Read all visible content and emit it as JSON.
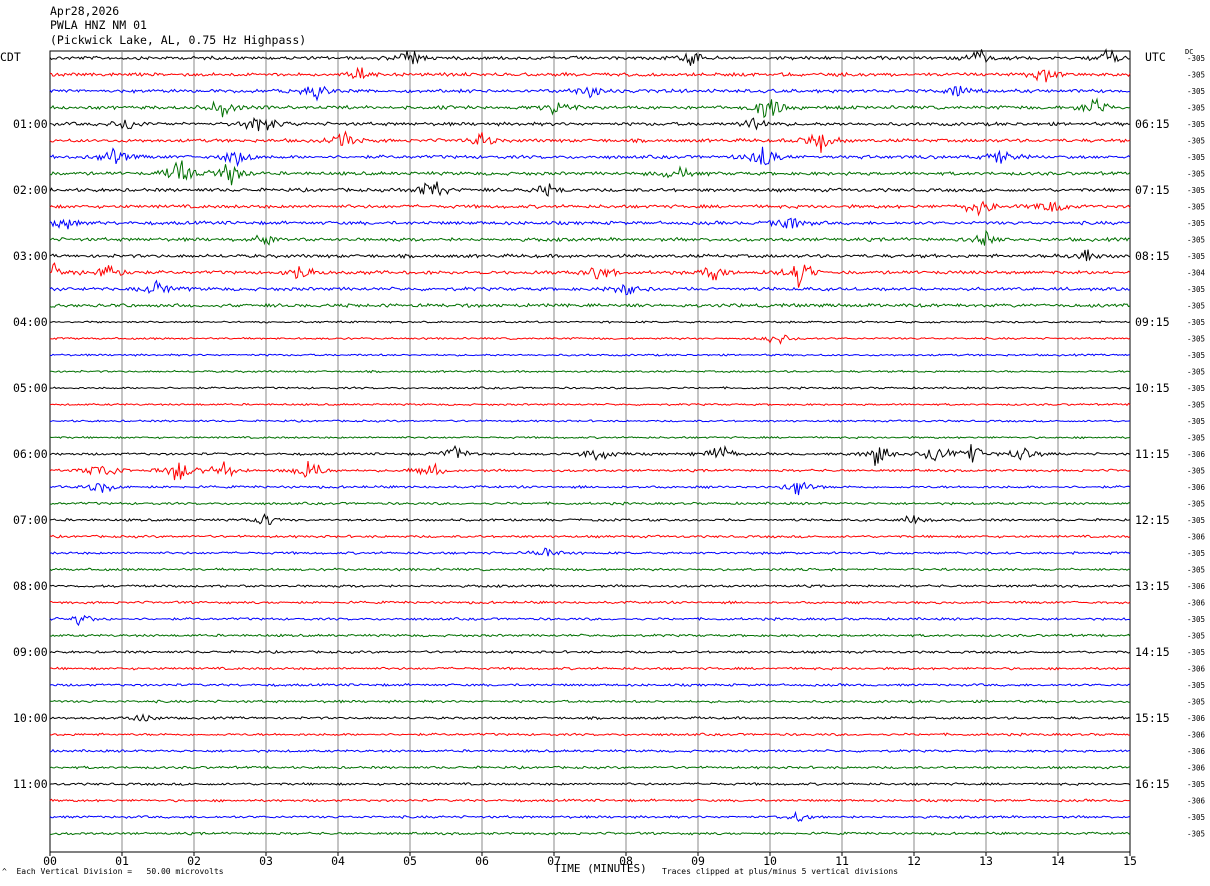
{
  "header": {
    "date": "Apr28,2026",
    "station": "PWLA HNZ NM 01",
    "description": "(Pickwick Lake, AL, 0.75 Hz Highpass)"
  },
  "left_tz": "CDT",
  "right_tz": "UTC",
  "dc_label": "DC",
  "footer": {
    "scale": "Each Vertical Division =   50.00 microvolts",
    "clip": "Traces clipped at plus/minus 5 vertical divisions",
    "corner_mark": "^"
  },
  "chart_data": {
    "type": "line",
    "title": "",
    "xlabel": "TIME (MINUTES)",
    "ylabel": "",
    "x_ticks": [
      "00",
      "01",
      "02",
      "03",
      "04",
      "05",
      "06",
      "07",
      "08",
      "09",
      "10",
      "11",
      "12",
      "13",
      "14",
      "15"
    ],
    "xlim": [
      0,
      15
    ],
    "grid": true,
    "trace_colors": [
      "#000000",
      "#ff0000",
      "#0000ff",
      "#007000"
    ],
    "left_labels": [
      {
        "row": 4,
        "text": "01:00"
      },
      {
        "row": 8,
        "text": "02:00"
      },
      {
        "row": 12,
        "text": "03:00"
      },
      {
        "row": 16,
        "text": "04:00"
      },
      {
        "row": 20,
        "text": "05:00"
      },
      {
        "row": 24,
        "text": "06:00"
      },
      {
        "row": 28,
        "text": "07:00"
      },
      {
        "row": 32,
        "text": "08:00"
      },
      {
        "row": 36,
        "text": "09:00"
      },
      {
        "row": 40,
        "text": "10:00"
      },
      {
        "row": 44,
        "text": "11:00"
      }
    ],
    "right_labels": [
      {
        "row": 4,
        "text": "06:15"
      },
      {
        "row": 8,
        "text": "07:15"
      },
      {
        "row": 12,
        "text": "08:15"
      },
      {
        "row": 16,
        "text": "09:15"
      },
      {
        "row": 20,
        "text": "10:15"
      },
      {
        "row": 24,
        "text": "11:15"
      },
      {
        "row": 28,
        "text": "12:15"
      },
      {
        "row": 32,
        "text": "13:15"
      },
      {
        "row": 36,
        "text": "14:15"
      },
      {
        "row": 40,
        "text": "15:15"
      },
      {
        "row": 44,
        "text": "16:15"
      }
    ],
    "dc_offsets": [
      "-305",
      "-305",
      "-305",
      "-305",
      "-305",
      "-305",
      "-305",
      "-305",
      "-305",
      "-305",
      "-305",
      "-305",
      "-305",
      "-304",
      "-305",
      "-305",
      "-305",
      "-305",
      "-305",
      "-305",
      "-305",
      "-305",
      "-305",
      "-305",
      "-306",
      "-305",
      "-306",
      "-305",
      "-305",
      "-306",
      "-305",
      "-305",
      "-306",
      "-306",
      "-305",
      "-305",
      "-305",
      "-306",
      "-305",
      "-305",
      "-306",
      "-306",
      "-306",
      "-306",
      "-305",
      "-306",
      "-305",
      "-305"
    ],
    "bursts": [
      {
        "row": 0,
        "min": 5.0,
        "amp": 8
      },
      {
        "row": 0,
        "min": 8.9,
        "amp": 6
      },
      {
        "row": 0,
        "min": 12.9,
        "amp": 9
      },
      {
        "row": 0,
        "min": 14.7,
        "amp": 7
      },
      {
        "row": 1,
        "min": 4.3,
        "amp": 6
      },
      {
        "row": 1,
        "min": 13.8,
        "amp": 9
      },
      {
        "row": 2,
        "min": 3.7,
        "amp": 9
      },
      {
        "row": 2,
        "min": 7.5,
        "amp": 6
      },
      {
        "row": 2,
        "min": 12.6,
        "amp": 6
      },
      {
        "row": 3,
        "min": 2.4,
        "amp": 10
      },
      {
        "row": 3,
        "min": 7.0,
        "amp": 8
      },
      {
        "row": 3,
        "min": 10.0,
        "amp": 14
      },
      {
        "row": 3,
        "min": 14.5,
        "amp": 9
      },
      {
        "row": 4,
        "min": 2.9,
        "amp": 14
      },
      {
        "row": 4,
        "min": 1.1,
        "amp": 6
      },
      {
        "row": 4,
        "min": 9.8,
        "amp": 8
      },
      {
        "row": 5,
        "min": 4.1,
        "amp": 9
      },
      {
        "row": 5,
        "min": 6.0,
        "amp": 7
      },
      {
        "row": 5,
        "min": 10.7,
        "amp": 12
      },
      {
        "row": 6,
        "min": 0.9,
        "amp": 10
      },
      {
        "row": 6,
        "min": 2.6,
        "amp": 9
      },
      {
        "row": 6,
        "min": 9.9,
        "amp": 12
      },
      {
        "row": 6,
        "min": 13.2,
        "amp": 7
      },
      {
        "row": 7,
        "min": 1.8,
        "amp": 14
      },
      {
        "row": 7,
        "min": 2.5,
        "amp": 12
      },
      {
        "row": 7,
        "min": 8.7,
        "amp": 7
      },
      {
        "row": 8,
        "min": 5.3,
        "amp": 12
      },
      {
        "row": 8,
        "min": 6.9,
        "amp": 6
      },
      {
        "row": 9,
        "min": 12.9,
        "amp": 10
      },
      {
        "row": 9,
        "min": 13.9,
        "amp": 8
      },
      {
        "row": 10,
        "min": 10.3,
        "amp": 9
      },
      {
        "row": 10,
        "min": 0.2,
        "amp": 6
      },
      {
        "row": 11,
        "min": 13.0,
        "amp": 6
      },
      {
        "row": 11,
        "min": 3.0,
        "amp": 5
      },
      {
        "row": 12,
        "min": 14.4,
        "amp": 7
      },
      {
        "row": 13,
        "min": 0.1,
        "amp": 9
      },
      {
        "row": 13,
        "min": 0.8,
        "amp": 11
      },
      {
        "row": 13,
        "min": 3.5,
        "amp": 9
      },
      {
        "row": 13,
        "min": 7.6,
        "amp": 12
      },
      {
        "row": 13,
        "min": 10.4,
        "amp": 16
      },
      {
        "row": 13,
        "min": 9.2,
        "amp": 7
      },
      {
        "row": 14,
        "min": 1.5,
        "amp": 8
      },
      {
        "row": 14,
        "min": 8.0,
        "amp": 6
      },
      {
        "row": 17,
        "min": 10.1,
        "amp": 6
      },
      {
        "row": 24,
        "min": 5.6,
        "amp": 9
      },
      {
        "row": 24,
        "min": 7.6,
        "amp": 8
      },
      {
        "row": 24,
        "min": 9.3,
        "amp": 9
      },
      {
        "row": 24,
        "min": 11.5,
        "amp": 12
      },
      {
        "row": 24,
        "min": 12.3,
        "amp": 9
      },
      {
        "row": 24,
        "min": 12.8,
        "amp": 12
      },
      {
        "row": 24,
        "min": 13.5,
        "amp": 8
      },
      {
        "row": 25,
        "min": 0.7,
        "amp": 14
      },
      {
        "row": 25,
        "min": 1.8,
        "amp": 12
      },
      {
        "row": 25,
        "min": 2.4,
        "amp": 10
      },
      {
        "row": 25,
        "min": 3.6,
        "amp": 12
      },
      {
        "row": 25,
        "min": 5.3,
        "amp": 8
      },
      {
        "row": 26,
        "min": 0.7,
        "amp": 7
      },
      {
        "row": 26,
        "min": 10.4,
        "amp": 9
      },
      {
        "row": 28,
        "min": 3.0,
        "amp": 6
      },
      {
        "row": 28,
        "min": 12.0,
        "amp": 5
      },
      {
        "row": 30,
        "min": 6.9,
        "amp": 6
      },
      {
        "row": 34,
        "min": 0.4,
        "amp": 6
      },
      {
        "row": 40,
        "min": 1.3,
        "amp": 5
      },
      {
        "row": 46,
        "min": 10.4,
        "amp": 5
      }
    ]
  }
}
